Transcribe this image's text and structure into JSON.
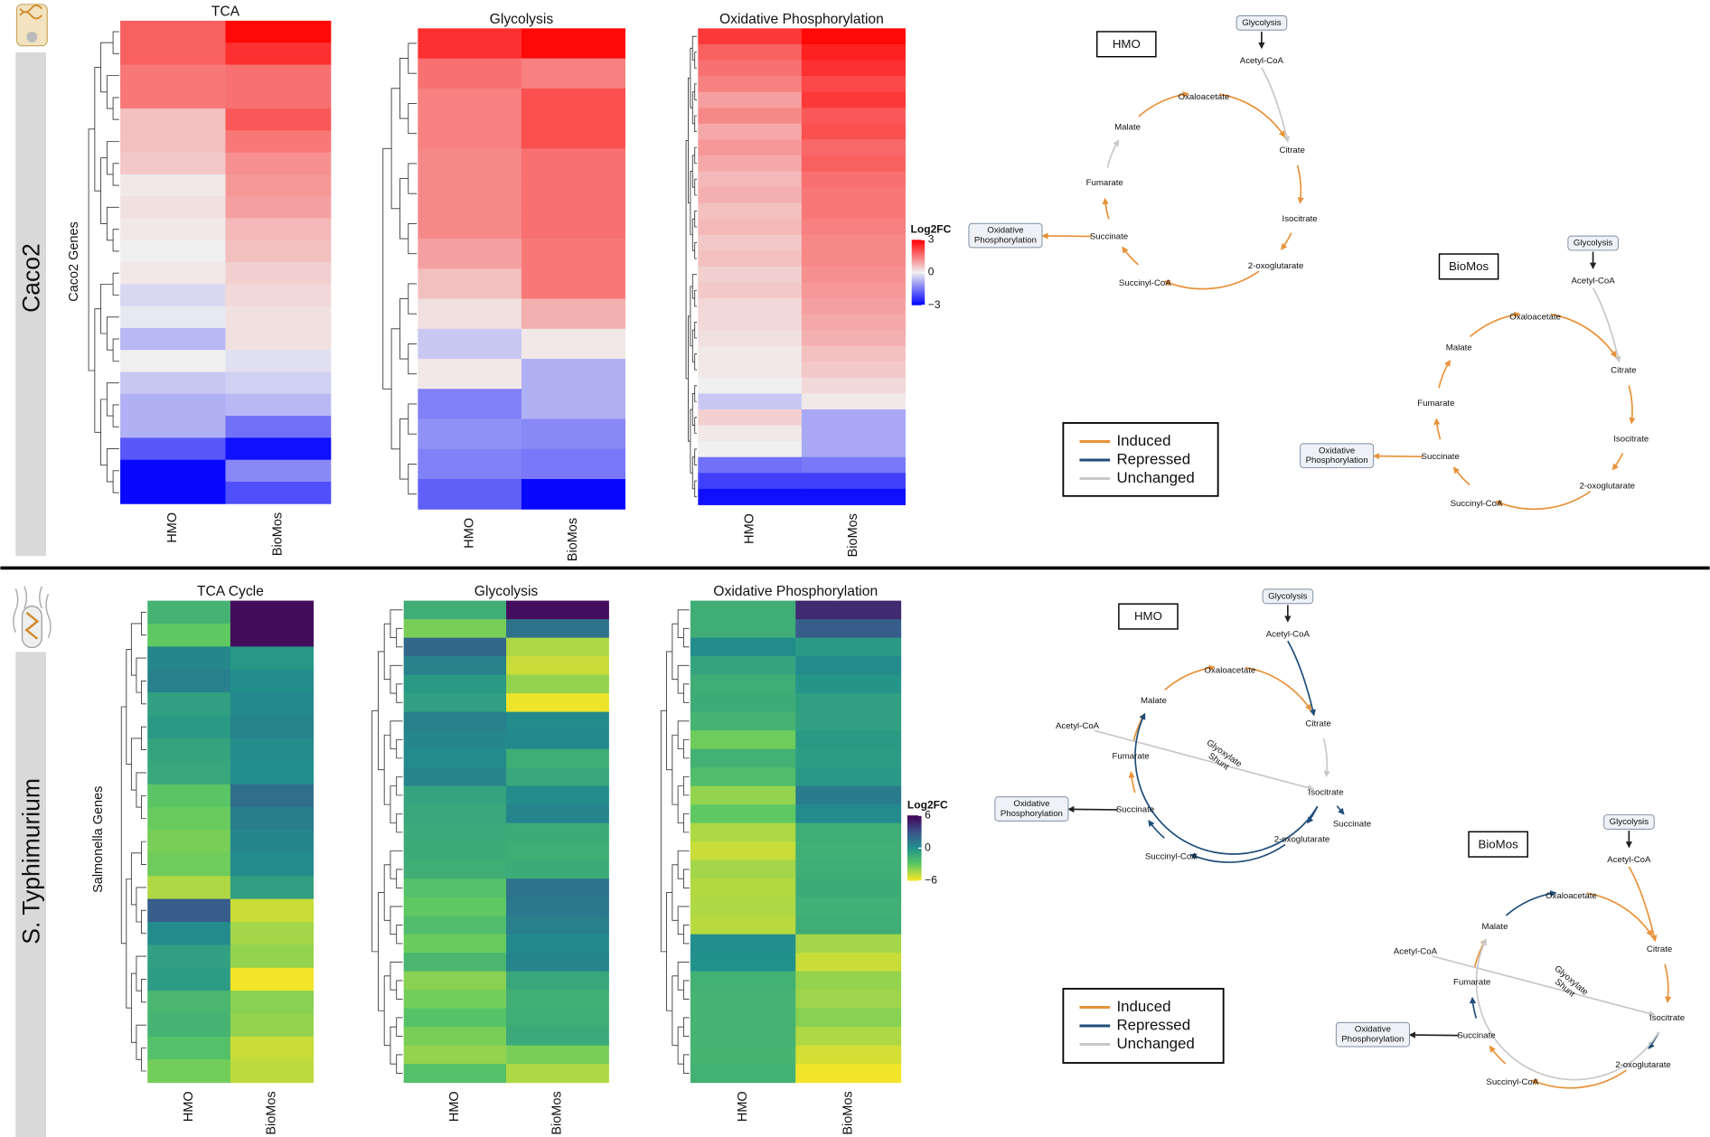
{
  "panels": [
    {
      "label": "Caco2",
      "genes_label": "Caco2 Genes",
      "heatmaps": [
        {
          "title": "TCA",
          "columns": [
            "HMO",
            "BioMos"
          ],
          "values": [
            [
              1.8,
              2.9
            ],
            [
              1.8,
              2.4
            ],
            [
              1.5,
              1.6
            ],
            [
              1.5,
              1.6
            ],
            [
              0.6,
              1.9
            ],
            [
              0.6,
              1.5
            ],
            [
              0.5,
              1.2
            ],
            [
              0.1,
              1.1
            ],
            [
              0.2,
              1.0
            ],
            [
              0.1,
              0.7
            ],
            [
              0.0,
              0.6
            ],
            [
              0.1,
              0.4
            ],
            [
              -0.3,
              0.3
            ],
            [
              -0.1,
              0.2
            ],
            [
              -0.7,
              0.2
            ],
            [
              0.0,
              -0.2
            ],
            [
              -0.5,
              -0.4
            ],
            [
              -0.8,
              -0.7
            ],
            [
              -0.8,
              -1.6
            ],
            [
              -1.9,
              -2.8
            ],
            [
              -2.9,
              -1.3
            ],
            [
              -2.9,
              -2.0
            ]
          ]
        },
        {
          "title": "Glycolysis",
          "columns": [
            "HMO",
            "BioMos"
          ],
          "values": [
            [
              2.4,
              2.9
            ],
            [
              1.6,
              1.4
            ],
            [
              1.4,
              2.0
            ],
            [
              1.4,
              2.0
            ],
            [
              1.3,
              1.6
            ],
            [
              1.3,
              1.6
            ],
            [
              1.3,
              1.6
            ],
            [
              1.0,
              1.5
            ],
            [
              0.6,
              1.5
            ],
            [
              0.2,
              0.8
            ],
            [
              -0.5,
              0.1
            ],
            [
              0.1,
              -0.8
            ],
            [
              -1.4,
              -0.8
            ],
            [
              -1.2,
              -1.3
            ],
            [
              -1.4,
              -1.5
            ],
            [
              -1.8,
              -2.9
            ]
          ]
        },
        {
          "title": "Oxidative Phosphorylation",
          "columns": [
            "HMO",
            "BioMos"
          ],
          "values": [
            [
              2.3,
              2.9
            ],
            [
              1.8,
              2.6
            ],
            [
              1.6,
              2.4
            ],
            [
              1.4,
              2.1
            ],
            [
              1.0,
              2.3
            ],
            [
              1.3,
              1.9
            ],
            [
              0.9,
              2.0
            ],
            [
              1.1,
              1.7
            ],
            [
              0.9,
              1.8
            ],
            [
              0.7,
              1.6
            ],
            [
              0.8,
              1.5
            ],
            [
              0.6,
              1.5
            ],
            [
              0.7,
              1.4
            ],
            [
              0.5,
              1.3
            ],
            [
              0.6,
              1.3
            ],
            [
              0.4,
              1.2
            ],
            [
              0.5,
              1.1
            ],
            [
              0.3,
              1.0
            ],
            [
              0.3,
              0.9
            ],
            [
              0.2,
              0.8
            ],
            [
              0.1,
              0.6
            ],
            [
              0.1,
              0.5
            ],
            [
              0.0,
              0.3
            ],
            [
              -0.5,
              0.1
            ],
            [
              0.4,
              -0.9
            ],
            [
              0.1,
              -0.9
            ],
            [
              0.0,
              -0.9
            ],
            [
              -1.6,
              -1.5
            ],
            [
              -2.2,
              -2.2
            ],
            [
              -2.8,
              -2.8
            ]
          ]
        }
      ],
      "colorbar": {
        "title": "Log2FC",
        "lim": [
          -3,
          3
        ],
        "colors": [
          "#0000ff",
          "#f0f0f0",
          "#ff0000"
        ],
        "ticks": [
          3,
          0,
          {
            "value": -3,
            "label": "−3"
          }
        ]
      },
      "legend": [
        {
          "label": "Induced",
          "color": "#e8923a"
        },
        {
          "label": "Repressed",
          "color": "#1f4e79"
        },
        {
          "label": "Unchanged",
          "color": "#c8c8c8"
        }
      ],
      "pathways": [
        {
          "condition": "HMO",
          "nodes": [
            "Glycolysis",
            "Acetyl-CoA",
            "Oxaloacetate",
            "Citrate",
            "Isocitrate",
            "2-oxoglutarate",
            "Succinyl-CoA",
            "Succinate",
            "Fumarate",
            "Malate",
            [
              "Oxidative",
              "Phosphorylation"
            ]
          ],
          "edges": [
            [
              0,
              1,
              "#222222"
            ],
            [
              1,
              3,
              "#c8c8c8"
            ],
            [
              2,
              3,
              "#e8923a"
            ],
            [
              3,
              4,
              "#e8923a"
            ],
            [
              4,
              5,
              "#e8923a"
            ],
            [
              5,
              6,
              "#e8923a"
            ],
            [
              6,
              7,
              "#e8923a"
            ],
            [
              7,
              8,
              "#e8923a"
            ],
            [
              8,
              9,
              "#c8c8c8"
            ],
            [
              9,
              2,
              "#e8923a"
            ],
            [
              7,
              10,
              "#e8923a"
            ]
          ]
        },
        {
          "condition": "BioMos",
          "nodes": [
            "Glycolysis",
            "Acetyl-CoA",
            "Oxaloacetate",
            "Citrate",
            "Isocitrate",
            "2-oxoglutarate",
            "Succinyl-CoA",
            "Succinate",
            "Fumarate",
            "Malate",
            [
              "Oxidative",
              "Phosphorylation"
            ]
          ],
          "edges": [
            [
              0,
              1,
              "#222222"
            ],
            [
              1,
              3,
              "#c8c8c8"
            ],
            [
              2,
              3,
              "#e8923a"
            ],
            [
              3,
              4,
              "#e8923a"
            ],
            [
              4,
              5,
              "#e8923a"
            ],
            [
              5,
              6,
              "#e8923a"
            ],
            [
              6,
              7,
              "#e8923a"
            ],
            [
              7,
              8,
              "#e8923a"
            ],
            [
              8,
              9,
              "#e8923a"
            ],
            [
              9,
              2,
              "#e8923a"
            ],
            [
              7,
              10,
              "#e8923a"
            ]
          ]
        }
      ]
    },
    {
      "label": "S. Typhimurium",
      "genes_label": "Salmonella Genes",
      "heatmaps": [
        {
          "title": "TCA Cycle",
          "columns": [
            "HMO",
            "BioMos"
          ],
          "values": [
            [
              -1.8,
              5.6
            ],
            [
              -3.0,
              5.6
            ],
            [
              0.5,
              -0.3
            ],
            [
              0.8,
              0.2
            ],
            [
              -0.8,
              0.4
            ],
            [
              -0.5,
              0.6
            ],
            [
              -1.0,
              0.2
            ],
            [
              -1.2,
              0.1
            ],
            [
              -2.8,
              1.6
            ],
            [
              -3.2,
              0.9
            ],
            [
              -3.5,
              0.5
            ],
            [
              -3.3,
              0.3
            ],
            [
              -4.5,
              -0.8
            ],
            [
              2.5,
              -5.0
            ],
            [
              0.3,
              -4.3
            ],
            [
              -0.8,
              -4.0
            ],
            [
              -0.6,
              -5.8
            ],
            [
              -2.0,
              -3.8
            ],
            [
              -1.8,
              -4.0
            ],
            [
              -2.5,
              -5.0
            ],
            [
              -3.4,
              -4.8
            ]
          ]
        },
        {
          "title": "Glycolysis",
          "columns": [
            "HMO",
            "BioMos"
          ],
          "values": [
            [
              -1.5,
              5.5
            ],
            [
              -3.5,
              1.5
            ],
            [
              2.0,
              -4.5
            ],
            [
              0.7,
              -5.0
            ],
            [
              -0.5,
              -4.0
            ],
            [
              -0.8,
              -5.7
            ],
            [
              0.8,
              0.3
            ],
            [
              0.5,
              0.4
            ],
            [
              0.3,
              -1.5
            ],
            [
              0.6,
              -1.2
            ],
            [
              -1.0,
              0.2
            ],
            [
              -1.2,
              0.6
            ],
            [
              -1.3,
              -1.4
            ],
            [
              -1.4,
              -1.5
            ],
            [
              -1.5,
              -1.4
            ],
            [
              -2.5,
              1.5
            ],
            [
              -3.0,
              1.2
            ],
            [
              -2.3,
              0.8
            ],
            [
              -3.2,
              0.4
            ],
            [
              -2.0,
              0.6
            ],
            [
              -3.8,
              -1.2
            ],
            [
              -3.4,
              -1.6
            ],
            [
              -2.6,
              -1.5
            ],
            [
              -3.5,
              -1.3
            ],
            [
              -4.0,
              -3.5
            ],
            [
              -2.5,
              -4.5
            ]
          ]
        },
        {
          "title": "Oxidative Phosphorylation",
          "columns": [
            "HMO",
            "BioMos"
          ],
          "values": [
            [
              -1.5,
              4.5
            ],
            [
              -1.5,
              2.5
            ],
            [
              0.2,
              -0.5
            ],
            [
              -1.0,
              0.3
            ],
            [
              -1.5,
              -0.2
            ],
            [
              -1.4,
              -0.8
            ],
            [
              -1.8,
              -0.8
            ],
            [
              -3.3,
              -0.5
            ],
            [
              -1.7,
              -0.6
            ],
            [
              -2.3,
              -0.4
            ],
            [
              -4.0,
              1.0
            ],
            [
              -3.0,
              0.3
            ],
            [
              -4.5,
              -1.5
            ],
            [
              -5.0,
              -1.6
            ],
            [
              -4.3,
              -1.5
            ],
            [
              -4.6,
              -1.4
            ],
            [
              -4.5,
              -1.6
            ],
            [
              -4.7,
              -1.5
            ],
            [
              0.1,
              -4.3
            ],
            [
              0.0,
              -5.0
            ],
            [
              -1.7,
              -4.0
            ],
            [
              -1.8,
              -4.2
            ],
            [
              -1.8,
              -3.8
            ],
            [
              -1.8,
              -4.5
            ],
            [
              -1.9,
              -5.2
            ],
            [
              -1.7,
              -5.8
            ]
          ]
        }
      ],
      "colorbar": {
        "title": "Log2FC",
        "lim": [
          -6,
          6
        ],
        "colors": [
          "#fde725",
          "#5ec962",
          "#21918c",
          "#3b528b",
          "#440154"
        ],
        "ticks": [
          6,
          0,
          {
            "value": -6,
            "label": "−6"
          }
        ]
      },
      "legend": [
        {
          "label": "Induced",
          "color": "#e8923a"
        },
        {
          "label": "Repressed",
          "color": "#1f4e79"
        },
        {
          "label": "Unchanged",
          "color": "#c8c8c8"
        }
      ],
      "pathways": [
        {
          "condition": "HMO",
          "nodes": [
            "Glycolysis",
            "Acetyl-CoA",
            "Oxaloacetate",
            "Citrate",
            "Isocitrate",
            "2-oxoglutarate",
            "Succinyl-CoA",
            "Succinate",
            "Fumarate",
            "Malate",
            [
              "Oxidative",
              "Phosphorylation"
            ],
            "Acetyl-CoA",
            "Succinate",
            [
              "Glyoxylate",
              "Shunt"
            ]
          ],
          "edges": [
            [
              0,
              1,
              "#222222"
            ],
            [
              1,
              3,
              "#1f4e79"
            ],
            [
              2,
              3,
              "#e8923a"
            ],
            [
              3,
              4,
              "#c8c8c8"
            ],
            [
              4,
              5,
              "#1f4e79"
            ],
            [
              5,
              6,
              "#1f4e79"
            ],
            [
              6,
              7,
              "#1f4e79"
            ],
            [
              7,
              8,
              "#e8923a"
            ],
            [
              8,
              9,
              "#e8923a"
            ],
            [
              9,
              2,
              "#e8923a"
            ],
            [
              7,
              10,
              "#222222"
            ],
            [
              11,
              4,
              "#c8c8c8"
            ],
            [
              4,
              9,
              "#1f4e79"
            ],
            [
              4,
              12,
              "#1f4e79"
            ]
          ]
        },
        {
          "condition": "BioMos",
          "nodes": [
            "Glycolysis",
            "Acetyl-CoA",
            "Oxaloacetate",
            "Citrate",
            "Isocitrate",
            "2-oxoglutarate",
            "Succinyl-CoA",
            "Succinate",
            "Fumarate",
            "Malate",
            [
              "Oxidative",
              "Phosphorylation"
            ],
            "Acetyl-CoA",
            [
              "Glyoxylate",
              "Shunt"
            ]
          ],
          "edges": [
            [
              0,
              1,
              "#222222"
            ],
            [
              1,
              3,
              "#e8923a"
            ],
            [
              2,
              3,
              "#e8923a"
            ],
            [
              3,
              4,
              "#e8923a"
            ],
            [
              4,
              5,
              "#1f4e79"
            ],
            [
              5,
              6,
              "#e8923a"
            ],
            [
              6,
              7,
              "#e8923a"
            ],
            [
              7,
              8,
              "#1f4e79"
            ],
            [
              8,
              9,
              "#e8923a"
            ],
            [
              9,
              2,
              "#1f4e79"
            ],
            [
              7,
              10,
              "#222222"
            ],
            [
              11,
              4,
              "#c8c8c8"
            ],
            [
              4,
              9,
              "#c8c8c8"
            ]
          ]
        }
      ]
    }
  ]
}
